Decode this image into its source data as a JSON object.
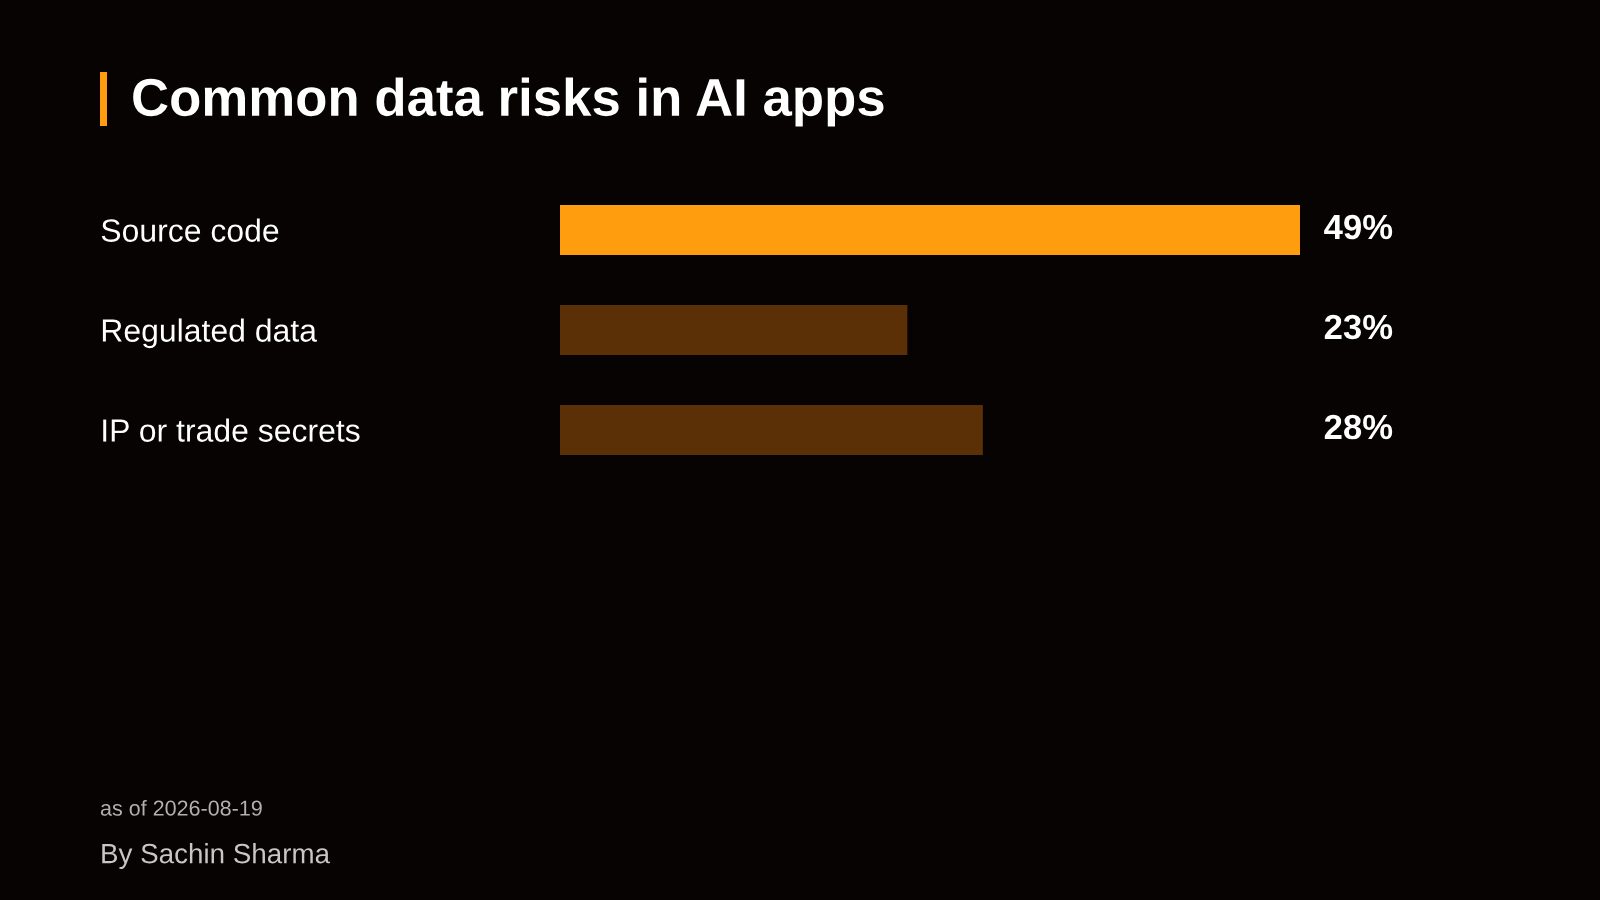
{
  "chart_data": {
    "type": "bar",
    "orientation": "horizontal",
    "title": "Common data risks in AI apps",
    "categories": [
      "Source code",
      "Regulated data",
      "IP or trade secrets"
    ],
    "values": [
      49,
      23,
      28
    ],
    "colors": [
      "#ff9d0f",
      "#5b3006",
      "#5b3006"
    ],
    "xlim": [
      0,
      49
    ],
    "tick_labels": "y",
    "value_labels": [
      "49%",
      "23%",
      "28%"
    ],
    "grid": false,
    "legend": false,
    "annotations": [
      "as of 2026-08-19",
      "By Sachin Sharma"
    ]
  }
}
